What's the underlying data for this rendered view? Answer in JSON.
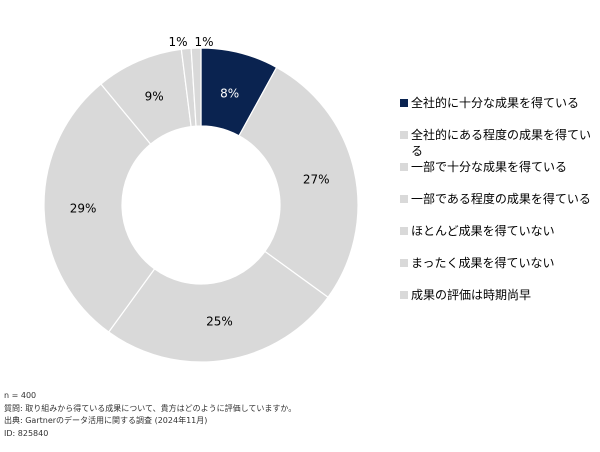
{
  "chart_data": {
    "type": "pie",
    "donut": true,
    "categories": [
      "全社的に十分な成果を得ている",
      "全社的にある程度の成果を得ている",
      "一部で十分な成果を得ている",
      "一部である程度の成果を得ている",
      "ほとんど成果を得ていない",
      "まったく成果を得ていない",
      "成果の評価は時期尚早"
    ],
    "values": [
      8,
      27,
      25,
      29,
      9,
      1,
      1
    ],
    "value_labels": [
      "8%",
      "27%",
      "25%",
      "29%",
      "9%",
      "1%",
      "1%"
    ],
    "colors": [
      "#0a2350",
      "#d9d9d9",
      "#d9d9d9",
      "#d9d9d9",
      "#d9d9d9",
      "#d9d9d9",
      "#d9d9d9"
    ],
    "legend_position": "right"
  },
  "footnotes": {
    "n": "n = 400",
    "question": "質問: 取り組みから得ている成果について、貴方はどのように評価していますか。",
    "source": "出典: Gartnerのデータ活用に関する調査 (2024年11月)",
    "id": "ID: 825840"
  }
}
